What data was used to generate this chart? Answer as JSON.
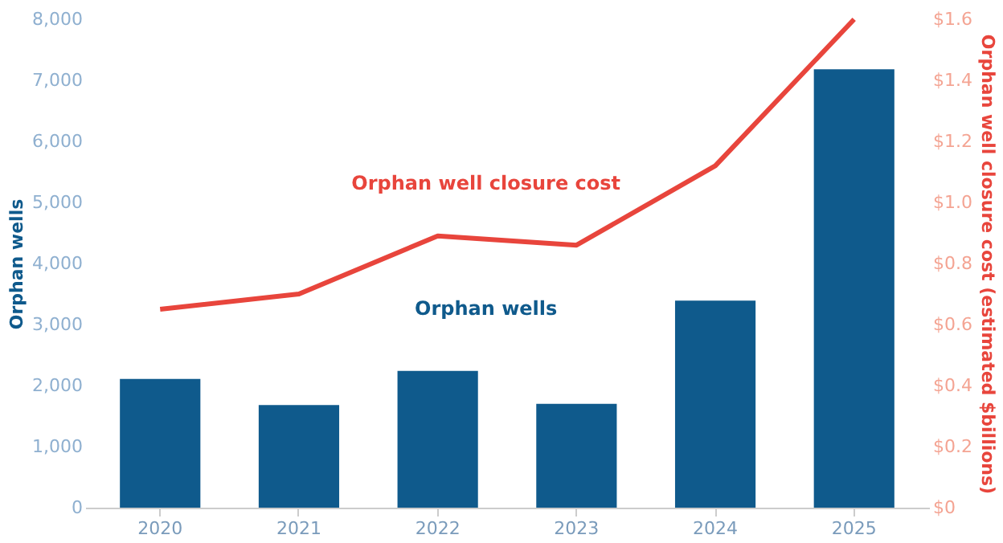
{
  "chart_data": {
    "type": "bar",
    "ylabel": "Orphan wells",
    "y2label": "Orphan well closure cost (estimated $billions)",
    "categories": [
      "2020",
      "2021",
      "2022",
      "2023",
      "2024",
      "2025"
    ],
    "series": [
      {
        "name": "Orphan wells",
        "color": "#0f5a8c",
        "values": [
          2110,
          1680,
          2240,
          1700,
          3390,
          7180
        ]
      },
      {
        "name": "Orphan well closure cost",
        "type": "line",
        "axis": "y2",
        "color": "#e8453c",
        "values": [
          0.65,
          0.7,
          0.89,
          0.86,
          1.12,
          1.6
        ]
      }
    ],
    "ylim": [
      0,
      8000
    ],
    "yticks": [
      0,
      {
        "value": 1000,
        "label": "1,000"
      },
      {
        "value": 2000,
        "label": "2,000"
      },
      {
        "value": 3000,
        "label": "3,000"
      },
      {
        "value": 4000,
        "label": "4,000"
      },
      {
        "value": 5000,
        "label": "5,000"
      },
      {
        "value": 6000,
        "label": "6,000"
      },
      {
        "value": 7000,
        "label": "7,000"
      },
      {
        "value": 8000,
        "label": "8,000"
      }
    ],
    "y2lim": [
      0,
      1.6
    ],
    "y2ticks": [
      {
        "value": 0,
        "label": "$0"
      },
      {
        "value": 0.2,
        "label": "$0.2"
      },
      {
        "value": 0.4,
        "label": "$0.4"
      },
      {
        "value": 0.6,
        "label": "$0.6"
      },
      {
        "value": 0.8,
        "label": "$0.8"
      },
      {
        "value": 1.0,
        "label": "$1.0"
      },
      {
        "value": 1.2,
        "label": "$1.2"
      },
      {
        "value": 1.4,
        "label": "$1.4"
      },
      {
        "value": 1.6,
        "label": "$1.6"
      }
    ],
    "grid": false,
    "marker": "none",
    "line_style": "solid"
  }
}
